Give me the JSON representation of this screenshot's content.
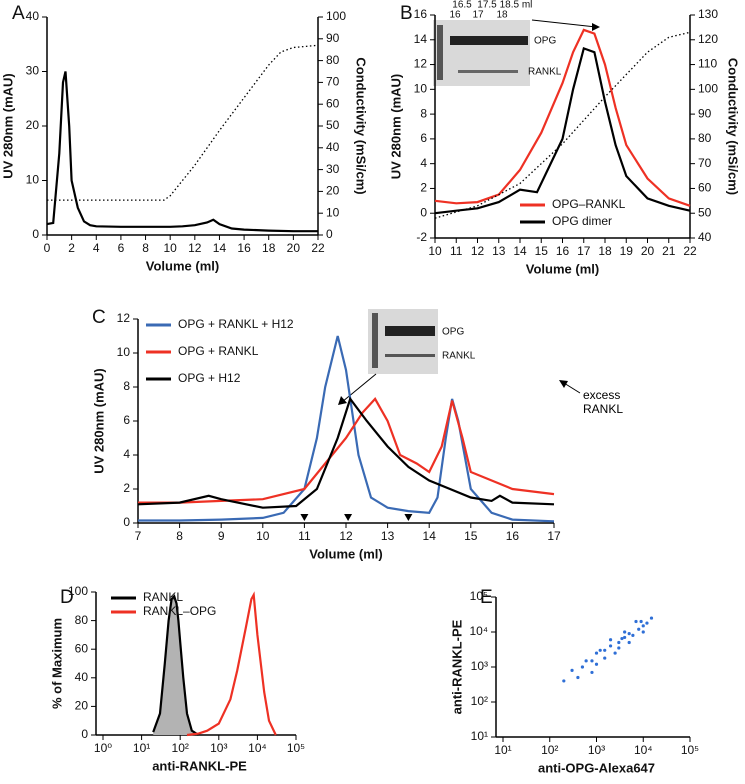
{
  "chart_data": [
    {
      "type": "line",
      "panel_label": "A",
      "xlabel": "Volume (ml)",
      "ylabel": "UV 280nm (mAU)",
      "y2label": "Conductivity (mSi/cm)",
      "xlim": [
        0,
        22
      ],
      "xticks": [
        0,
        2,
        4,
        6,
        8,
        10,
        12,
        14,
        16,
        18,
        20,
        22
      ],
      "ylim": [
        0,
        40
      ],
      "yticks": [
        0,
        10,
        20,
        30,
        40
      ],
      "y2lim": [
        0,
        100
      ],
      "y2ticks": [
        0,
        10,
        20,
        30,
        40,
        50,
        60,
        70,
        80,
        90,
        100
      ],
      "series": [
        {
          "color": "#000000",
          "x": [
            0,
            0.5,
            1,
            1.3,
            1.5,
            1.8,
            2,
            2.5,
            3,
            3.5,
            4,
            6,
            8,
            10,
            11,
            12,
            13,
            13.5,
            14,
            15,
            16,
            18,
            20,
            22
          ],
          "values": [
            2,
            2.2,
            15,
            28,
            30,
            20,
            10,
            5,
            2.5,
            1.8,
            1.6,
            1.5,
            1.5,
            1.5,
            1.6,
            1.8,
            2.3,
            2.8,
            2,
            1.2,
            1,
            0.8,
            0.7,
            0.7
          ]
        },
        {
          "color": "#000000",
          "dashed": true,
          "axis": "y2",
          "x": [
            0,
            4,
            9.5,
            10,
            12,
            14,
            16,
            18,
            19,
            20,
            22
          ],
          "values": [
            16,
            16,
            16,
            18,
            32,
            48,
            63,
            78,
            84,
            86,
            87
          ]
        }
      ]
    },
    {
      "type": "line",
      "panel_label": "B",
      "xlabel": "Volume (ml)",
      "ylabel": "UV 280nm (mAU)",
      "y2label": "Conductivity (mSi/cm)",
      "xlim": [
        10,
        22
      ],
      "xticks": [
        10,
        11,
        12,
        13,
        14,
        15,
        16,
        17,
        18,
        19,
        20,
        21,
        22
      ],
      "ylim": [
        -2,
        16
      ],
      "yticks": [
        -2,
        0,
        2,
        4,
        6,
        8,
        10,
        12,
        14,
        16
      ],
      "y2lim": [
        40,
        130
      ],
      "y2ticks": [
        40,
        50,
        60,
        70,
        80,
        90,
        100,
        110,
        120,
        130
      ],
      "legend": "lower right",
      "inset": {
        "lanes_top": [
          "16.5",
          "17.5",
          "18.5 ml"
        ],
        "lanes_bottom": [
          "16",
          "17",
          "18"
        ],
        "bands": [
          "OPG",
          "RANKL"
        ]
      },
      "series": [
        {
          "name": "OPG–RANKL",
          "color": "#ee3124",
          "x": [
            10,
            11,
            12,
            13,
            14,
            15,
            16,
            16.5,
            17,
            17.5,
            18,
            18.5,
            19,
            20,
            21,
            22
          ],
          "values": [
            1,
            0.8,
            0.9,
            1.5,
            3.5,
            6.5,
            10.5,
            13,
            14.8,
            14.5,
            12,
            8.5,
            5.5,
            2.8,
            1.2,
            0.6
          ]
        },
        {
          "name": "OPG dimer",
          "color": "#000000",
          "x": [
            10,
            11,
            12,
            13,
            14,
            14.8,
            16,
            16.5,
            17,
            17.5,
            18,
            18.5,
            19,
            20,
            21,
            22
          ],
          "values": [
            0,
            0.2,
            0.4,
            0.9,
            1.9,
            1.7,
            6,
            10,
            13.3,
            13,
            9,
            5.5,
            3,
            1.2,
            0.6,
            0.2
          ]
        },
        {
          "color": "#000000",
          "dashed": true,
          "axis": "y2",
          "x": [
            10,
            12,
            14,
            16,
            18,
            20,
            21,
            22
          ],
          "values": [
            48,
            53,
            62,
            78,
            97,
            115,
            121,
            123
          ]
        }
      ]
    },
    {
      "type": "line",
      "panel_label": "C",
      "xlabel": "Volume (ml)",
      "ylabel": "UV 280nm (mAU)",
      "xlim": [
        7,
        17
      ],
      "xticks": [
        7,
        8,
        9,
        10,
        11,
        12,
        13,
        14,
        15,
        16,
        17
      ],
      "ylim": [
        0,
        12
      ],
      "yticks": [
        0,
        2,
        4,
        6,
        8,
        10,
        12
      ],
      "legend": "upper left",
      "annotation": "excess RANKL",
      "markers": [
        11,
        12.05,
        13.5
      ],
      "inset": {
        "bands": [
          "OPG",
          "RANKL"
        ]
      },
      "series": [
        {
          "name": "OPG + RANKL + H12",
          "color": "#3a6ab4",
          "x": [
            7,
            8,
            9,
            10,
            10.5,
            11,
            11.3,
            11.5,
            11.8,
            12,
            12.3,
            12.6,
            13,
            13.5,
            14,
            14.2,
            14.4,
            14.55,
            14.7,
            15,
            15.5,
            16,
            17
          ],
          "values": [
            0.15,
            0.15,
            0.2,
            0.3,
            0.6,
            2,
            5,
            8,
            11,
            9,
            4,
            1.5,
            0.9,
            0.7,
            0.6,
            1.5,
            5,
            7.3,
            6,
            2,
            0.6,
            0.2,
            0.1
          ]
        },
        {
          "name": "OPG + RANKL",
          "color": "#ee3124",
          "x": [
            7,
            8,
            9,
            10,
            11,
            11.5,
            12,
            12.4,
            12.7,
            13,
            13.3,
            13.7,
            14,
            14.3,
            14.55,
            14.8,
            15,
            16,
            17
          ],
          "values": [
            1.2,
            1.2,
            1.3,
            1.4,
            2,
            3.5,
            5,
            6.5,
            7.3,
            6,
            4,
            3.5,
            3,
            4.5,
            7.2,
            5,
            3,
            2,
            1.7
          ]
        },
        {
          "name": "OPG + H12",
          "color": "#000000",
          "x": [
            7,
            8,
            8.7,
            9,
            10,
            10.8,
            11.3,
            11.8,
            12.1,
            12.5,
            13,
            13.5,
            14,
            14.5,
            15,
            15.5,
            15.7,
            16,
            17
          ],
          "values": [
            1.1,
            1.2,
            1.6,
            1.4,
            0.9,
            1,
            2,
            5,
            7.3,
            6,
            4.5,
            3.3,
            2.5,
            2,
            1.5,
            1.3,
            1.6,
            1.2,
            1.1
          ]
        }
      ]
    },
    {
      "type": "line",
      "panel_label": "D",
      "xlabel": "anti-RANKL-PE",
      "ylabel": "% of Maximum",
      "xscale": "log",
      "xlim": [
        1,
        100000
      ],
      "xticks": [
        {
          "value": 1,
          "label": "10⁰"
        },
        {
          "value": 10,
          "label": "10¹"
        },
        {
          "value": 100,
          "label": "10²"
        },
        {
          "value": 1000,
          "label": "10³"
        },
        {
          "value": 10000,
          "label": "10⁴"
        },
        {
          "value": 100000,
          "label": "10⁵"
        }
      ],
      "ylim": [
        0,
        100
      ],
      "yticks": [
        0,
        20,
        40,
        60,
        80,
        100
      ],
      "legend": "upper left",
      "series": [
        {
          "name": "RANKL",
          "color": "#000000",
          "fill": "#b3b3b3",
          "x": [
            20,
            30,
            40,
            50,
            60,
            70,
            80,
            90,
            100,
            120,
            150,
            200,
            300
          ],
          "values": [
            2,
            15,
            50,
            80,
            95,
            97,
            92,
            80,
            65,
            40,
            15,
            3,
            0
          ]
        },
        {
          "name": "RANKL–OPG",
          "color": "#ee3124",
          "x": [
            150,
            300,
            500,
            1000,
            2000,
            3000,
            5000,
            7000,
            8000,
            10000,
            15000,
            20000,
            30000
          ],
          "values": [
            0,
            1,
            3,
            8,
            25,
            45,
            75,
            95,
            98,
            70,
            30,
            10,
            0
          ]
        }
      ]
    },
    {
      "type": "scatter",
      "panel_label": "E",
      "xlabel": "anti-OPG-Alexa647",
      "ylabel": "anti-RANKL-PE",
      "xscale": "log",
      "yscale": "log",
      "xlim": [
        10,
        100000
      ],
      "xticks": [
        {
          "value": 10,
          "label": "10¹"
        },
        {
          "value": 100,
          "label": "10²"
        },
        {
          "value": 1000,
          "label": "10³"
        },
        {
          "value": 10000,
          "label": "10⁴"
        },
        {
          "value": 100000,
          "label": "10⁵"
        }
      ],
      "ylim": [
        10,
        100000
      ],
      "yticks": [
        {
          "value": 10,
          "label": "10¹"
        },
        {
          "value": 100,
          "label": "10²"
        },
        {
          "value": 1000,
          "label": "10³"
        },
        {
          "value": 10000,
          "label": "10⁴"
        },
        {
          "value": 100000,
          "label": "10⁵"
        }
      ],
      "color": "#2f6fd6",
      "x": [
        300,
        500,
        800,
        1000,
        1500,
        2000,
        3000,
        4000,
        5000,
        6000,
        8000,
        10000,
        12000,
        3000,
        2000,
        1500,
        800,
        600,
        4000,
        7000,
        2500,
        1200,
        9000,
        15000,
        200,
        400,
        5000,
        3500,
        10000,
        1000
      ],
      "values": [
        800,
        1000,
        1500,
        2500,
        3000,
        4000,
        5000,
        7000,
        9000,
        8000,
        12000,
        15000,
        18000,
        3500,
        6000,
        1800,
        700,
        1500,
        10000,
        20000,
        2500,
        3000,
        20000,
        25000,
        400,
        500,
        5000,
        6500,
        10000,
        1200
      ]
    }
  ]
}
